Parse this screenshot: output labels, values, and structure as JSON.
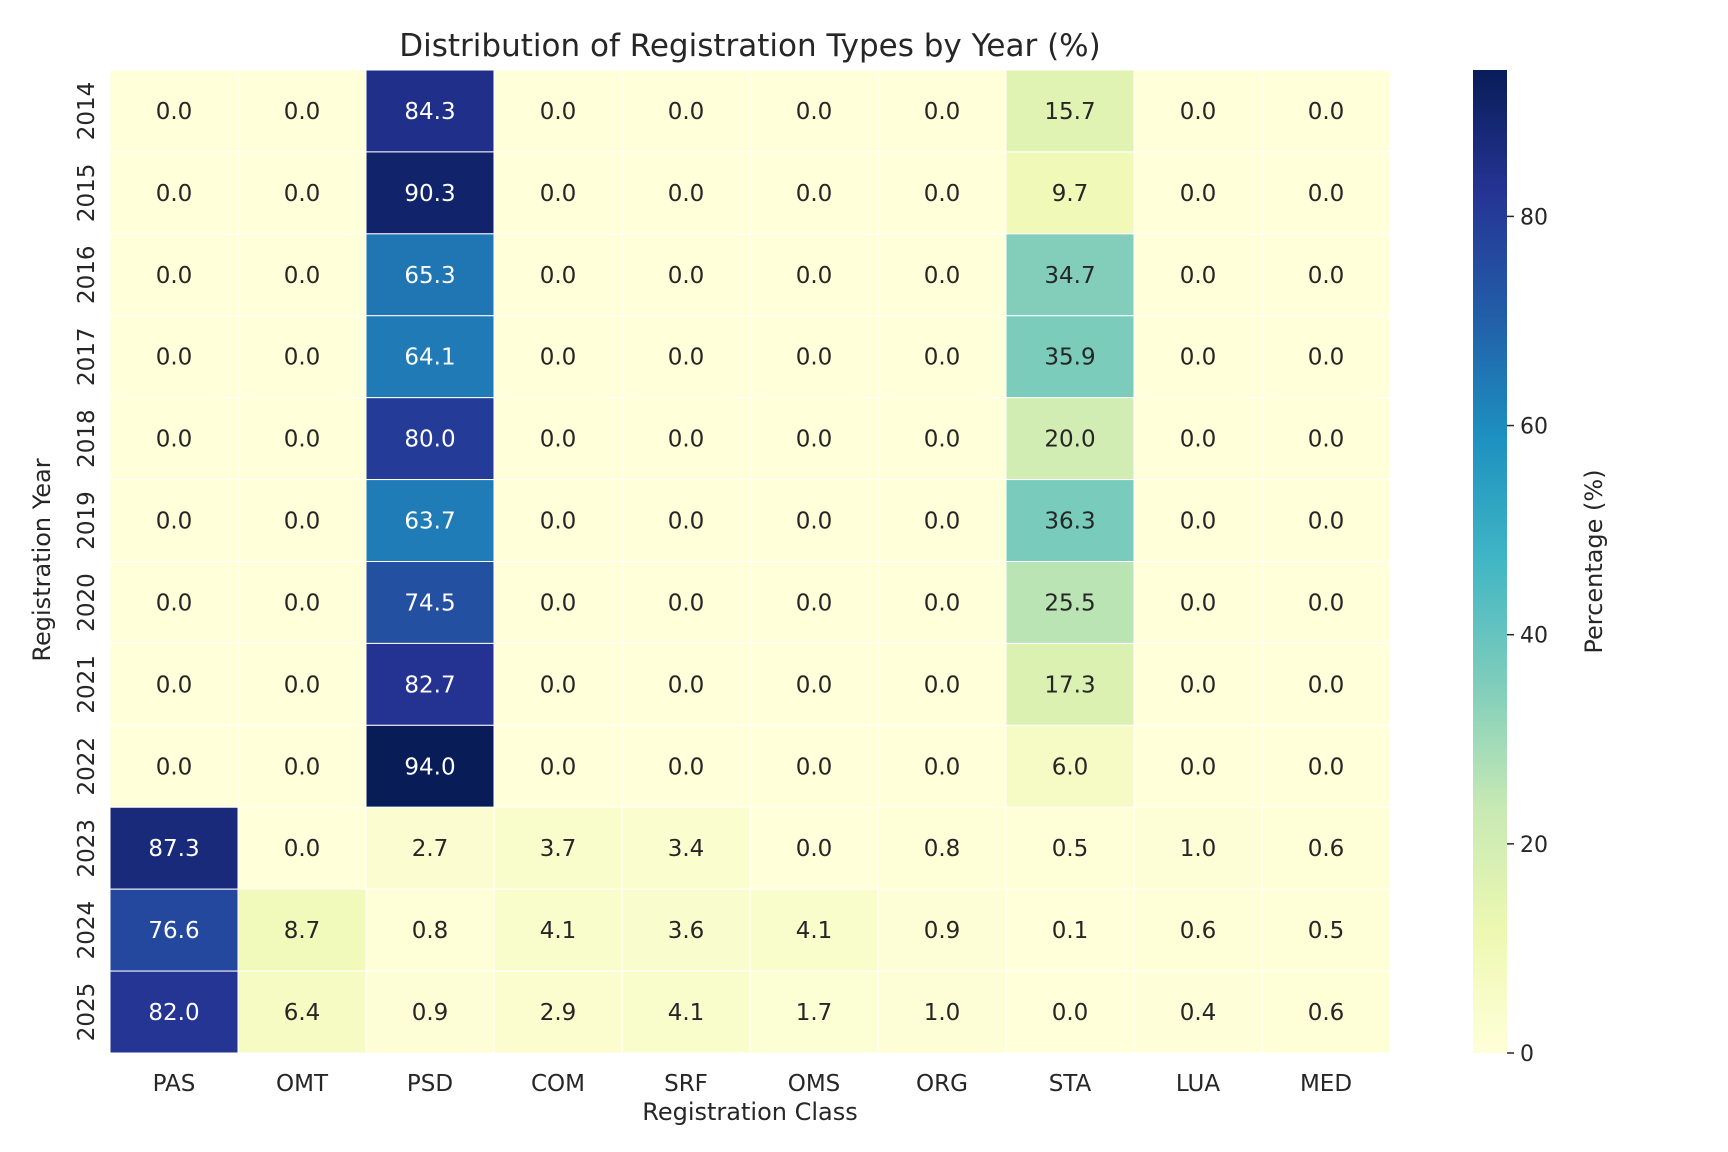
{
  "chart_data": {
    "type": "heatmap",
    "title": "Distribution of Registration Types by Year (%)",
    "xlabel": "Registration Class",
    "ylabel": "Registration Year",
    "colorbar_label": "Percentage (%)",
    "colormap": "YlGnBu",
    "color_range": [
      0,
      94.0
    ],
    "colorbar_ticks": [
      0,
      20,
      40,
      60,
      80
    ],
    "x_categories": [
      "PAS",
      "OMT",
      "PSD",
      "COM",
      "SRF",
      "OMS",
      "ORG",
      "STA",
      "LUA",
      "MED"
    ],
    "y_categories": [
      "2014",
      "2015",
      "2016",
      "2017",
      "2018",
      "2019",
      "2020",
      "2021",
      "2022",
      "2023",
      "2024",
      "2025"
    ],
    "values": [
      [
        0.0,
        0.0,
        84.3,
        0.0,
        0.0,
        0.0,
        0.0,
        15.7,
        0.0,
        0.0
      ],
      [
        0.0,
        0.0,
        90.3,
        0.0,
        0.0,
        0.0,
        0.0,
        9.7,
        0.0,
        0.0
      ],
      [
        0.0,
        0.0,
        65.3,
        0.0,
        0.0,
        0.0,
        0.0,
        34.7,
        0.0,
        0.0
      ],
      [
        0.0,
        0.0,
        64.1,
        0.0,
        0.0,
        0.0,
        0.0,
        35.9,
        0.0,
        0.0
      ],
      [
        0.0,
        0.0,
        80.0,
        0.0,
        0.0,
        0.0,
        0.0,
        20.0,
        0.0,
        0.0
      ],
      [
        0.0,
        0.0,
        63.7,
        0.0,
        0.0,
        0.0,
        0.0,
        36.3,
        0.0,
        0.0
      ],
      [
        0.0,
        0.0,
        74.5,
        0.0,
        0.0,
        0.0,
        0.0,
        25.5,
        0.0,
        0.0
      ],
      [
        0.0,
        0.0,
        82.7,
        0.0,
        0.0,
        0.0,
        0.0,
        17.3,
        0.0,
        0.0
      ],
      [
        0.0,
        0.0,
        94.0,
        0.0,
        0.0,
        0.0,
        0.0,
        6.0,
        0.0,
        0.0
      ],
      [
        87.3,
        0.0,
        2.7,
        3.7,
        3.4,
        0.0,
        0.8,
        0.5,
        1.0,
        0.6
      ],
      [
        76.6,
        8.7,
        0.8,
        4.1,
        3.6,
        4.1,
        0.9,
        0.1,
        0.6,
        0.5
      ],
      [
        82.0,
        6.4,
        0.9,
        2.9,
        4.1,
        1.7,
        1.0,
        0.0,
        0.4,
        0.6
      ]
    ]
  }
}
